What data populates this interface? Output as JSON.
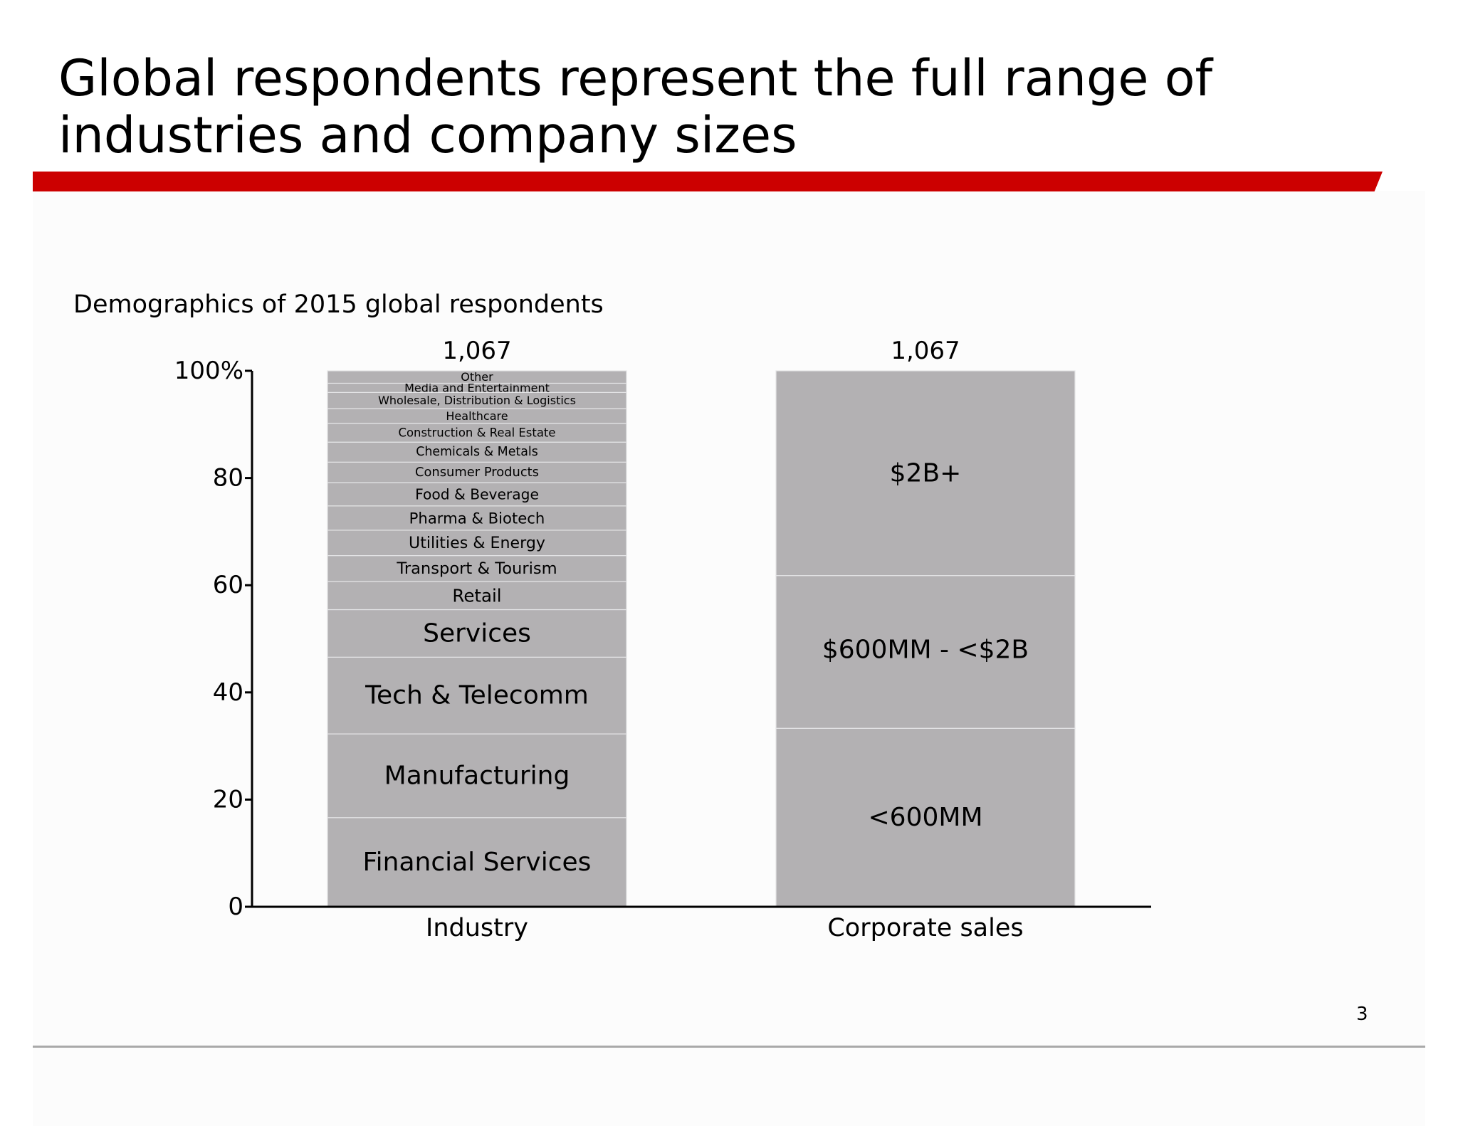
{
  "slide": {
    "title_line1": "Global respondents represent the full range of",
    "title_line2": "industries and company sizes",
    "subtitle": "Demographics of 2015 global respondents",
    "page_number": "3"
  },
  "colors": {
    "accent_red": "#cc0000",
    "bar_gray": "#b3b1b3",
    "segment_divider": "#e4e4e6",
    "rule_gray": "#a9a9a9"
  },
  "chart_data": {
    "type": "bar",
    "stacked": true,
    "title": "Demographics of 2015 global respondents",
    "xlabel": "",
    "ylabel": "",
    "ylim": [
      0,
      100
    ],
    "yticks": [
      0,
      20,
      40,
      60,
      80,
      100
    ],
    "ytick_labels": [
      "0",
      "20",
      "40",
      "60",
      "80",
      "100%"
    ],
    "categories": [
      "Industry",
      "Corporate sales"
    ],
    "totals": [
      "1,067",
      "1,067"
    ],
    "stacks": [
      {
        "category": "Industry",
        "segments": [
          {
            "label": "Financial Services",
            "value": 16.5
          },
          {
            "label": "Manufacturing",
            "value": 15.5
          },
          {
            "label": "Tech & Telecomm",
            "value": 14.2
          },
          {
            "label": "Services",
            "value": 8.8
          },
          {
            "label": "Retail",
            "value": 5.2
          },
          {
            "label": "Transport & Tourism",
            "value": 4.8
          },
          {
            "label": "Utilities & Energy",
            "value": 4.7
          },
          {
            "label": "Pharma & Biotech",
            "value": 4.5
          },
          {
            "label": "Food & Beverage",
            "value": 4.3
          },
          {
            "label": "Consumer Products",
            "value": 3.8
          },
          {
            "label": "Chemicals & Metals",
            "value": 3.7
          },
          {
            "label": "Construction & Real Estate",
            "value": 3.5
          },
          {
            "label": "Healthcare",
            "value": 2.7
          },
          {
            "label": "Wholesale, Distribution & Logistics",
            "value": 3.0
          },
          {
            "label": "Media and Entertainment",
            "value": 1.7
          },
          {
            "label": "Other",
            "value": 2.3
          }
        ]
      },
      {
        "category": "Corporate sales",
        "segments": [
          {
            "label": "<600MM",
            "value": 33.3
          },
          {
            "label": "$600MM -  <$2B",
            "value": 28.5
          },
          {
            "label": "$2B+",
            "value": 38.2
          }
        ]
      }
    ]
  }
}
